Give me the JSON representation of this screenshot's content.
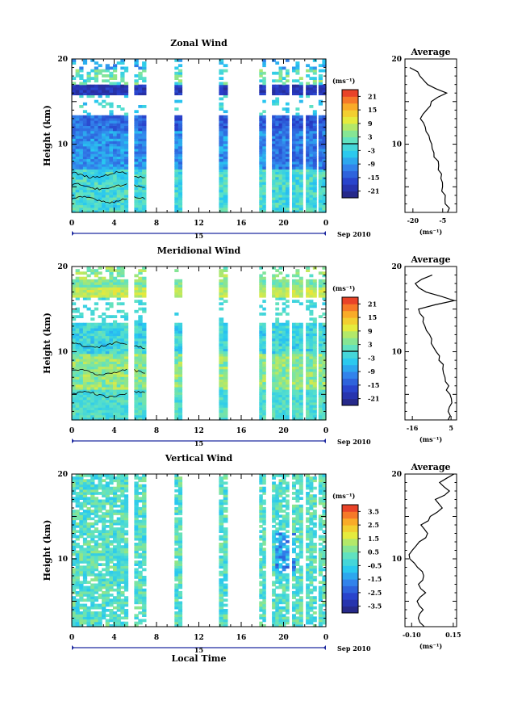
{
  "chart_data": [
    {
      "type": "heatmap",
      "title": "Zonal Wind",
      "ylabel": "Height (km)",
      "xlabel": "",
      "x_tick_labels": [
        "0",
        "4",
        "8",
        "12",
        "16",
        "20",
        "0"
      ],
      "xlim": [
        0,
        24
      ],
      "ylim": [
        2,
        20
      ],
      "y_ticks": [
        10,
        20
      ],
      "y_tick_labels": [
        "10",
        "20"
      ],
      "date_tick_label": "15",
      "month_label": "Sep 2010",
      "colorbar": {
        "unit": "(ms⁻¹)",
        "tick_labels": [
          "21",
          "15",
          "9",
          "3",
          "-3",
          "-9",
          "-15",
          "-21"
        ],
        "min": -24,
        "max": 24,
        "zero_line": 0
      },
      "data_columns": [
        [
          0.0,
          5.3
        ],
        [
          5.9,
          7.0
        ],
        [
          9.7,
          10.4
        ],
        [
          13.9,
          14.7
        ],
        [
          17.7,
          18.3
        ],
        [
          18.9,
          20.5
        ],
        [
          20.8,
          21.8
        ],
        [
          22.1,
          23.1
        ],
        [
          23.3,
          24.0
        ]
      ],
      "profile": {
        "title": "Average",
        "x_tick_labels": [
          "-20",
          "-5"
        ],
        "xlim": [
          -24,
          2
        ],
        "xlabel": "(ms⁻¹)",
        "heights": [
          2,
          3,
          4,
          5,
          6,
          7,
          8,
          9,
          10,
          11,
          12,
          13,
          14,
          15,
          16,
          17,
          18,
          19
        ],
        "values": [
          -2,
          -3,
          -4,
          -5,
          -6,
          -7,
          -8,
          -9,
          -10,
          -12,
          -14,
          -16,
          -13,
          -11,
          -3,
          -12,
          -16,
          -21
        ]
      }
    },
    {
      "type": "heatmap",
      "title": "Meridional Wind",
      "ylabel": "Height (km)",
      "xlabel": "",
      "x_tick_labels": [
        "0",
        "4",
        "8",
        "12",
        "16",
        "20",
        "0"
      ],
      "xlim": [
        0,
        24
      ],
      "ylim": [
        2,
        20
      ],
      "y_ticks": [
        10,
        20
      ],
      "y_tick_labels": [
        "10",
        "20"
      ],
      "date_tick_label": "15",
      "month_label": "Sep 2010",
      "colorbar": {
        "unit": "(ms⁻¹)",
        "tick_labels": [
          "21",
          "15",
          "9",
          "3",
          "-3",
          "-9",
          "-15",
          "-21"
        ],
        "min": -24,
        "max": 24,
        "zero_line": 0
      },
      "data_columns": [
        [
          0.0,
          5.3
        ],
        [
          5.9,
          7.0
        ],
        [
          9.7,
          10.4
        ],
        [
          13.9,
          14.7
        ],
        [
          17.7,
          18.3
        ],
        [
          18.9,
          20.5
        ],
        [
          20.8,
          21.8
        ],
        [
          22.1,
          23.1
        ],
        [
          23.3,
          24.0
        ]
      ],
      "profile": {
        "title": "Average",
        "x_tick_labels": [
          "-16",
          "5"
        ],
        "xlim": [
          -20,
          8
        ],
        "xlabel": "(ms⁻¹)",
        "heights": [
          2,
          3,
          4,
          5,
          6,
          7,
          8,
          9,
          10,
          11,
          12,
          13,
          14,
          15,
          16,
          17,
          18,
          19
        ],
        "values": [
          3,
          4,
          5,
          4,
          3,
          2,
          1,
          -1,
          -3,
          -5,
          -7,
          -9,
          -10,
          -12,
          6,
          -8,
          -15,
          -5
        ]
      }
    },
    {
      "type": "heatmap",
      "title": "Vertical Wind",
      "ylabel": "Height (km)",
      "xlabel": "Local Time",
      "x_tick_labels": [
        "0",
        "4",
        "8",
        "12",
        "16",
        "20",
        "0"
      ],
      "xlim": [
        0,
        24
      ],
      "ylim": [
        2,
        20
      ],
      "y_ticks": [
        10,
        20
      ],
      "y_tick_labels": [
        "10",
        "20"
      ],
      "date_tick_label": "15",
      "month_label": "Sep 2010",
      "colorbar": {
        "unit": "(ms⁻¹)",
        "tick_labels": [
          "3.5",
          "2.5",
          "1.5",
          "0.5",
          "-0.5",
          "-1.5",
          "-2.5",
          "-3.5"
        ],
        "min": -4,
        "max": 4
      },
      "data_columns": [
        [
          0.0,
          5.3
        ],
        [
          5.9,
          7.0
        ],
        [
          9.7,
          10.4
        ],
        [
          13.9,
          14.7
        ],
        [
          17.7,
          18.3
        ],
        [
          18.9,
          20.5
        ],
        [
          20.8,
          21.8
        ],
        [
          22.1,
          23.1
        ],
        [
          23.3,
          24.0
        ]
      ],
      "profile": {
        "title": "Average",
        "x_tick_labels": [
          "-0.10",
          "0.15"
        ],
        "xlim": [
          -0.14,
          0.17
        ],
        "xlabel": "(ms⁻¹)",
        "heights": [
          2,
          3,
          4,
          5,
          6,
          7,
          8,
          9,
          10,
          11,
          12,
          13,
          14,
          15,
          16,
          17,
          18,
          19,
          20
        ],
        "values": [
          -0.02,
          -0.06,
          -0.03,
          -0.07,
          -0.02,
          -0.05,
          -0.03,
          -0.06,
          -0.12,
          -0.09,
          -0.05,
          0.0,
          -0.04,
          0.02,
          0.08,
          0.05,
          0.12,
          0.06,
          0.15
        ]
      }
    }
  ]
}
